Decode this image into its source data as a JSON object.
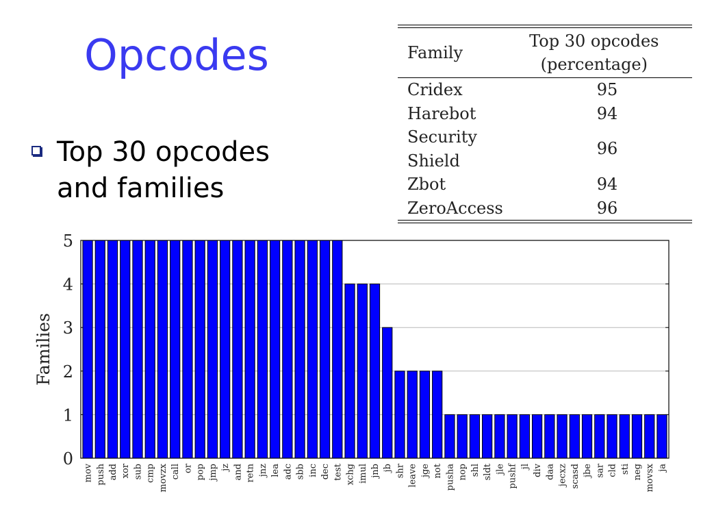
{
  "slide": {
    "title": "Opcodes",
    "bullet": "Top 30 opcodes and families"
  },
  "table": {
    "headers": [
      "Family",
      "Top 30 opcodes",
      "(percentage)"
    ],
    "rows": [
      {
        "family": "Cridex",
        "value": "95"
      },
      {
        "family": "Harebot",
        "value": "94"
      },
      {
        "family": "Security Shield",
        "value": "96"
      },
      {
        "family": "Zbot",
        "value": "94"
      },
      {
        "family": "ZeroAccess",
        "value": "96"
      }
    ]
  },
  "chart_data": {
    "type": "bar",
    "ylabel": "Families",
    "ylim": [
      0,
      5
    ],
    "yticks": [
      "0",
      "1",
      "2",
      "3",
      "4",
      "5"
    ],
    "grid": true,
    "bar_color": "#0000ff",
    "categories": [
      "mov",
      "push",
      "add",
      "xor",
      "sub",
      "cmp",
      "movzx",
      "call",
      "or",
      "pop",
      "jmp",
      "jz",
      "and",
      "retn",
      "jnz",
      "lea",
      "adc",
      "sbb",
      "inc",
      "dec",
      "test",
      "xchg",
      "imul",
      "jnb",
      "jb",
      "shr",
      "leave",
      "jge",
      "not",
      "pusha",
      "nop",
      "shl",
      "sldt",
      "jle",
      "pushf",
      "jl",
      "div",
      "daa",
      "jecxz",
      "scasd",
      "jbe",
      "sar",
      "cld",
      "sti",
      "neg",
      "movsx",
      "ja"
    ],
    "values": [
      5,
      5,
      5,
      5,
      5,
      5,
      5,
      5,
      5,
      5,
      5,
      5,
      5,
      5,
      5,
      5,
      5,
      5,
      5,
      5,
      5,
      4,
      4,
      4,
      3,
      2,
      2,
      2,
      2,
      1,
      1,
      1,
      1,
      1,
      1,
      1,
      1,
      1,
      1,
      1,
      1,
      1,
      1,
      1,
      1,
      1,
      1
    ]
  }
}
